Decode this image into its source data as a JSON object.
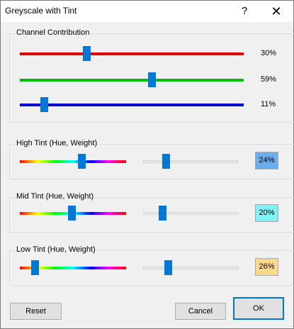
{
  "window": {
    "title": "Greyscale with Tint",
    "help_glyph": "?",
    "close_glyph": "✕"
  },
  "channel": {
    "label": "Channel Contribution",
    "sliders": [
      {
        "name": "red",
        "color": "#e00000",
        "value": 30,
        "display": "30%"
      },
      {
        "name": "green",
        "color": "#00c000",
        "value": 59,
        "display": "59%"
      },
      {
        "name": "blue",
        "color": "#0000d0",
        "value": 11,
        "display": "11%"
      }
    ]
  },
  "tints": [
    {
      "label": "High Tint (Hue, Weight)",
      "hue": 0.58,
      "weight": 24,
      "display": "24%",
      "swatch": "#6aaeef"
    },
    {
      "label": "Mid Tint (Hue, Weight)",
      "hue": 0.49,
      "weight": 20,
      "display": "20%",
      "swatch": "#7ff2f5"
    },
    {
      "label": "Low Tint (Hue, Weight)",
      "hue": 0.14,
      "weight": 26,
      "display": "26%",
      "swatch": "#fcd88a"
    }
  ],
  "buttons": {
    "reset": "Reset",
    "cancel": "Cancel",
    "ok": "OK"
  }
}
